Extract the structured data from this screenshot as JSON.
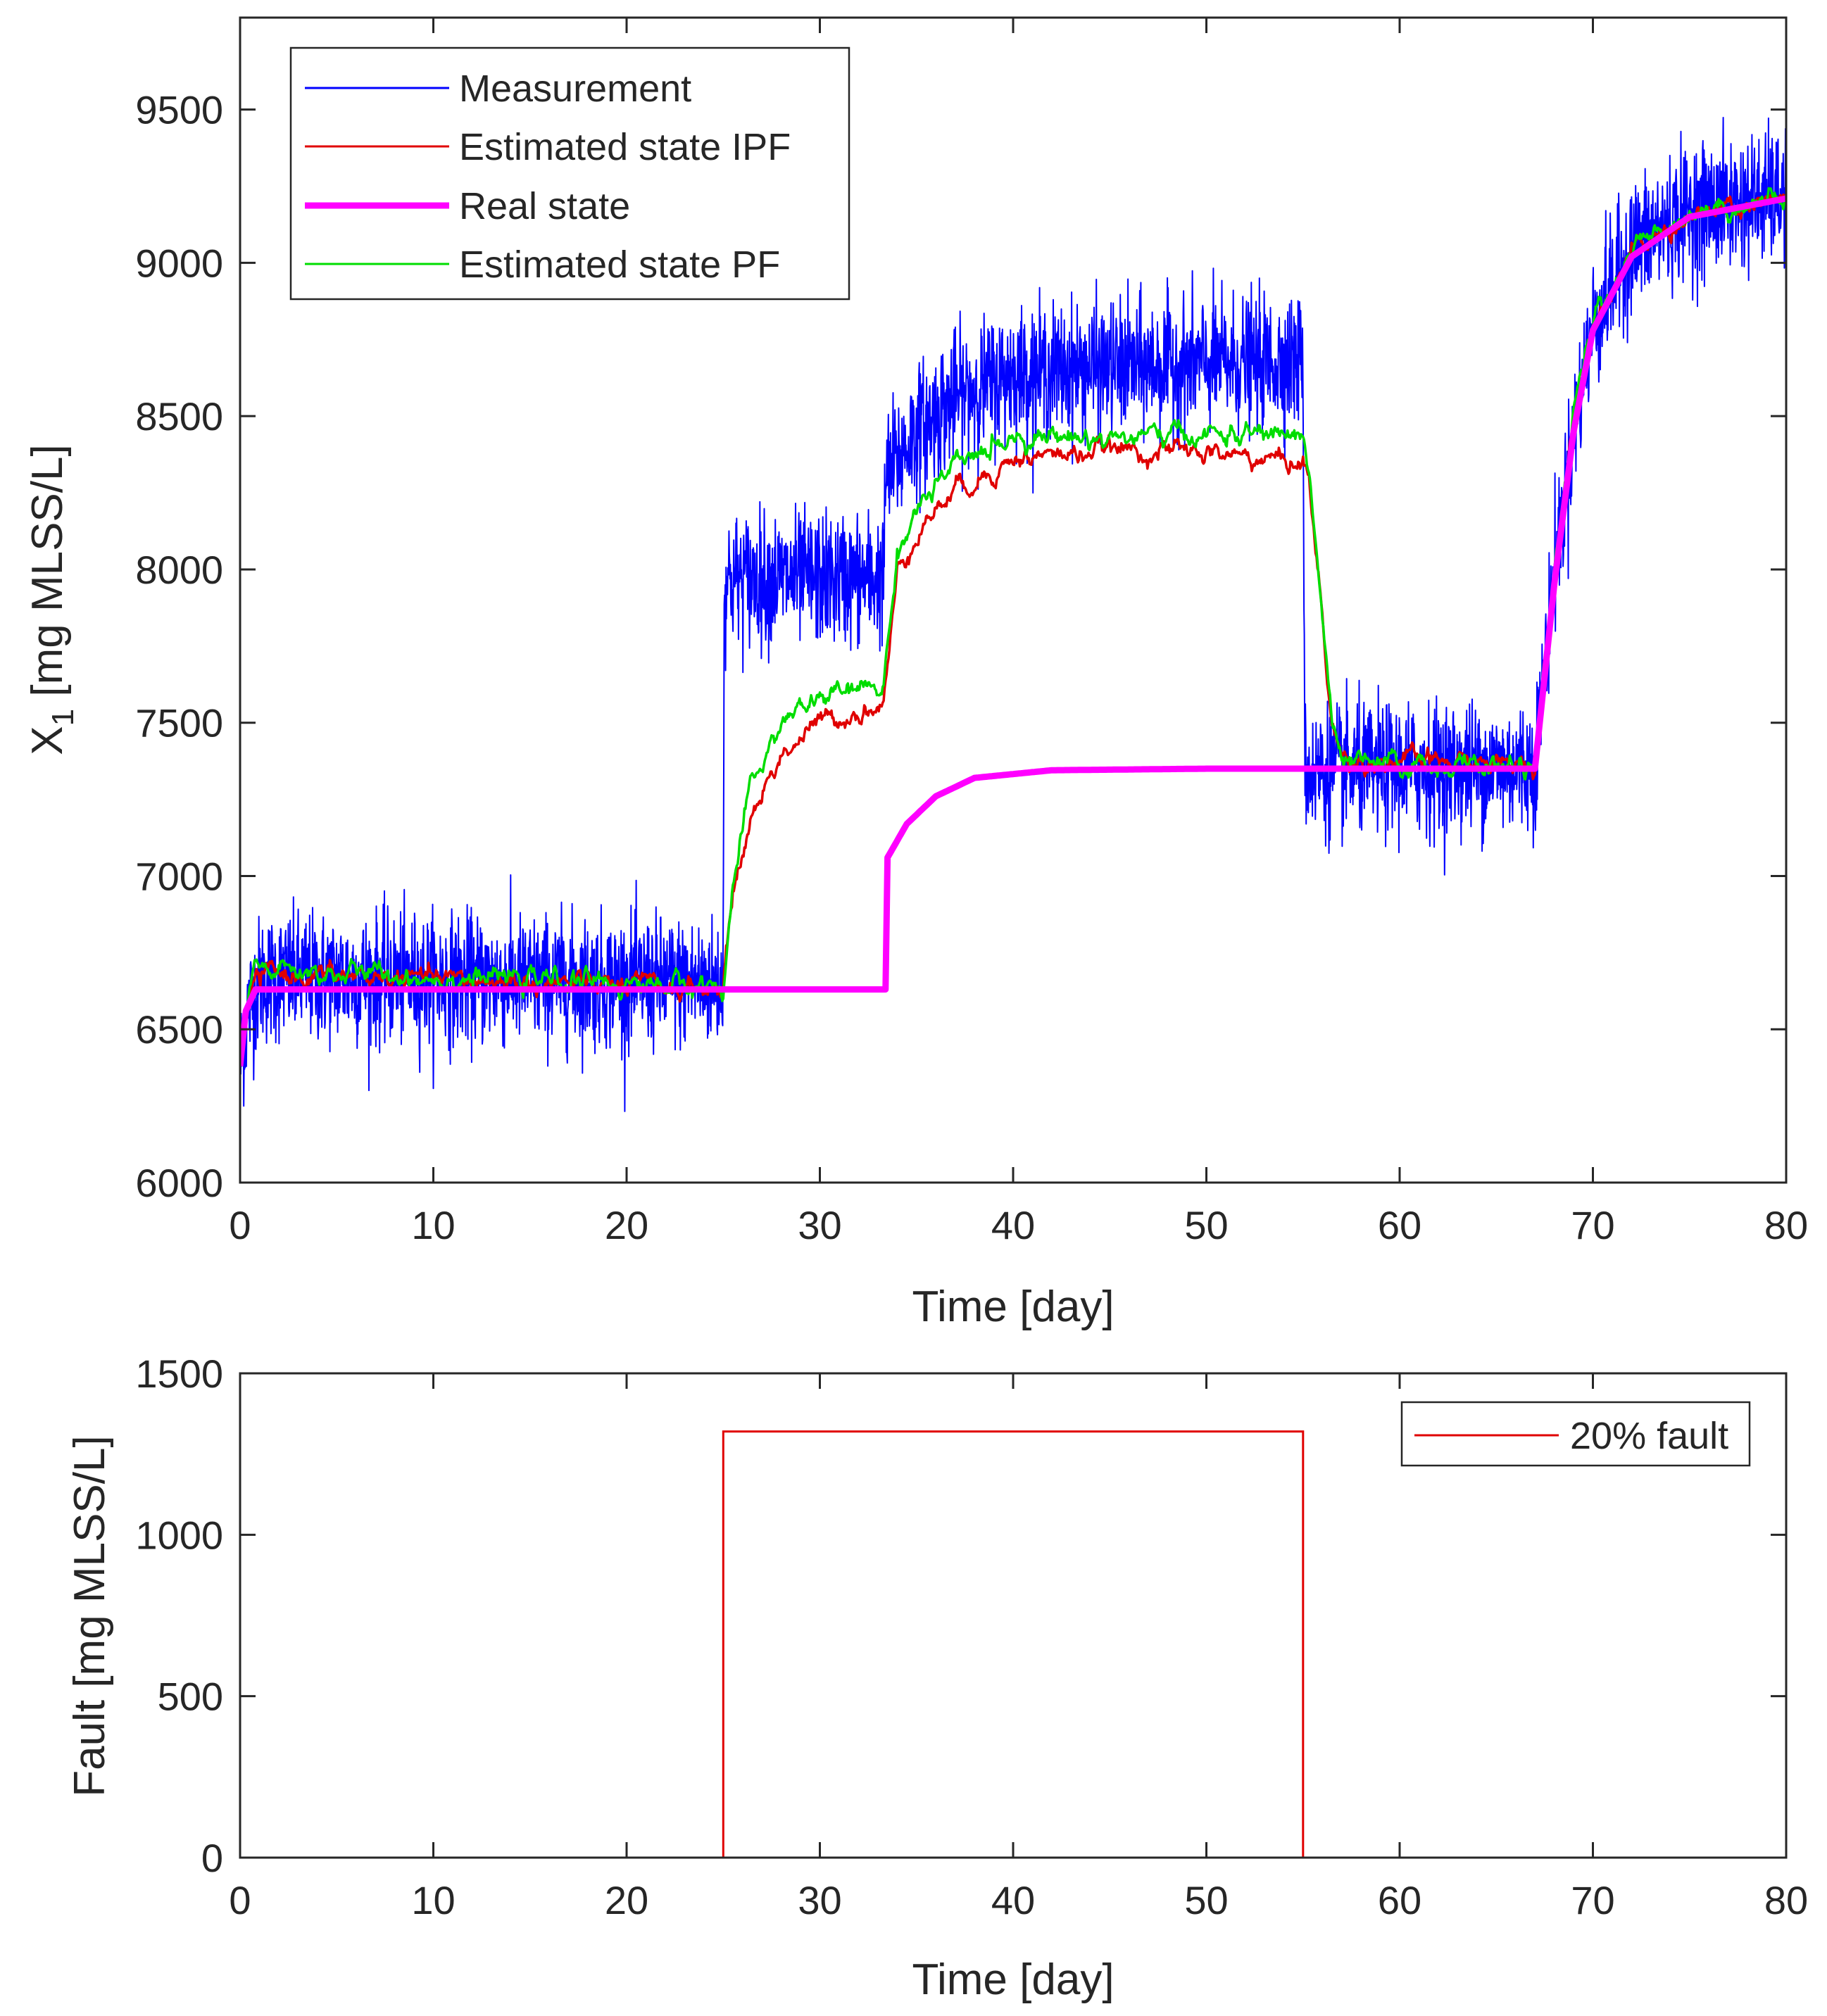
{
  "chart_data": [
    {
      "type": "line",
      "xlabel": "Time [day]",
      "ylabel": "X",
      "ylabel_sub": "1",
      "ylabel_rest": " [mg MLSS/L]",
      "xlim": [
        0,
        80
      ],
      "ylim": [
        6000,
        9800
      ],
      "xticks": [
        "0",
        "10",
        "20",
        "30",
        "40",
        "50",
        "60",
        "70",
        "80"
      ],
      "xtick_values": [
        0,
        10,
        20,
        30,
        40,
        50,
        60,
        70,
        80
      ],
      "yticks": [
        "6000",
        "6500",
        "7000",
        "7500",
        "8000",
        "8500",
        "9000",
        "9500"
      ],
      "ytick_values": [
        6000,
        6500,
        7000,
        7500,
        8000,
        8500,
        9000,
        9500
      ],
      "legend_position": "top-left",
      "series": [
        {
          "name": "Measurement",
          "color": "#0000ff",
          "style": "noisy",
          "noise_amplitude": 250,
          "description_points": [
            [
              0,
              6380
            ],
            [
              0.4,
              6560
            ],
            [
              1,
              6660
            ],
            [
              2,
              6670
            ],
            [
              25,
              6650
            ],
            [
              25.05,
              7970
            ],
            [
              33.3,
              7970
            ],
            [
              33.4,
              8300
            ],
            [
              35,
              8450
            ],
            [
              37,
              8560
            ],
            [
              40,
              8640
            ],
            [
              45,
              8660
            ],
            [
              55,
              8680
            ],
            [
              55.1,
              7340
            ],
            [
              67,
              7360
            ],
            [
              68,
              8000
            ],
            [
              69,
              8450
            ],
            [
              70,
              8800
            ],
            [
              72,
              9050
            ],
            [
              75,
              9170
            ],
            [
              80,
              9220
            ]
          ]
        },
        {
          "name": "Estimated state IPF",
          "color": "#e00000",
          "style": "estimate",
          "noise_amplitude": 25,
          "description_points": [
            [
              0,
              6380
            ],
            [
              0.3,
              6550
            ],
            [
              0.8,
              6660
            ],
            [
              1.5,
              6680
            ],
            [
              25,
              6630
            ],
            [
              25.5,
              6950
            ],
            [
              26.5,
              7200
            ],
            [
              28,
              7400
            ],
            [
              30,
              7500
            ],
            [
              33.3,
              7560
            ],
            [
              34,
              7980
            ],
            [
              35,
              8130
            ],
            [
              37,
              8260
            ],
            [
              40,
              8360
            ],
            [
              45,
              8390
            ],
            [
              50,
              8380
            ],
            [
              55,
              8350
            ],
            [
              55.3,
              8300
            ],
            [
              56.5,
              7500
            ],
            [
              57,
              7380
            ],
            [
              67,
              7360
            ],
            [
              68,
              7980
            ],
            [
              69,
              8500
            ],
            [
              70,
              8800
            ],
            [
              72,
              9030
            ],
            [
              75,
              9150
            ],
            [
              80,
              9200
            ]
          ]
        },
        {
          "name": "Real state",
          "color": "#ff00ff",
          "style": "thick",
          "description_points": [
            [
              0,
              6380
            ],
            [
              0.3,
              6560
            ],
            [
              0.8,
              6630
            ],
            [
              25,
              6630
            ],
            [
              33.4,
              6630
            ],
            [
              33.5,
              7060
            ],
            [
              34.5,
              7170
            ],
            [
              36,
              7260
            ],
            [
              38,
              7320
            ],
            [
              42,
              7345
            ],
            [
              50,
              7350
            ],
            [
              67,
              7350
            ],
            [
              68,
              7950
            ],
            [
              69,
              8450
            ],
            [
              70,
              8780
            ],
            [
              72,
              9020
            ],
            [
              75,
              9150
            ],
            [
              80,
              9210
            ]
          ]
        },
        {
          "name": "Estimated state PF",
          "color": "#00dd00",
          "style": "estimate",
          "noise_amplitude": 25,
          "description_points": [
            [
              0,
              6380
            ],
            [
              0.3,
              6560
            ],
            [
              0.8,
              6700
            ],
            [
              1.5,
              6690
            ],
            [
              25,
              6640
            ],
            [
              25.5,
              6970
            ],
            [
              26.5,
              7300
            ],
            [
              28,
              7500
            ],
            [
              30,
              7580
            ],
            [
              33.3,
              7620
            ],
            [
              34,
              8050
            ],
            [
              35,
              8200
            ],
            [
              37,
              8330
            ],
            [
              40,
              8440
            ],
            [
              45,
              8430
            ],
            [
              50,
              8440
            ],
            [
              55,
              8440
            ],
            [
              55.3,
              8330
            ],
            [
              56.5,
              7500
            ],
            [
              57,
              7360
            ],
            [
              67,
              7360
            ],
            [
              68,
              7980
            ],
            [
              69,
              8500
            ],
            [
              70,
              8810
            ],
            [
              72,
              9040
            ],
            [
              75,
              9170
            ],
            [
              80,
              9210
            ]
          ]
        }
      ]
    },
    {
      "type": "line",
      "xlabel": "Time [day]",
      "ylabel": "Fault [mg MLSS/L]",
      "xlim": [
        0,
        80
      ],
      "ylim": [
        0,
        1500
      ],
      "xticks": [
        "0",
        "10",
        "20",
        "30",
        "40",
        "50",
        "60",
        "70",
        "80"
      ],
      "xtick_values": [
        0,
        10,
        20,
        30,
        40,
        50,
        60,
        70,
        80
      ],
      "yticks": [
        "0",
        "500",
        "1000",
        "1500"
      ],
      "ytick_values": [
        0,
        500,
        1000,
        1500
      ],
      "legend_position": "top-right",
      "series": [
        {
          "name": "20% fault",
          "color": "#e00000",
          "x": [
            0,
            25,
            25,
            55,
            55,
            80
          ],
          "y": [
            0,
            0,
            1320,
            1320,
            0,
            0
          ]
        }
      ]
    }
  ]
}
